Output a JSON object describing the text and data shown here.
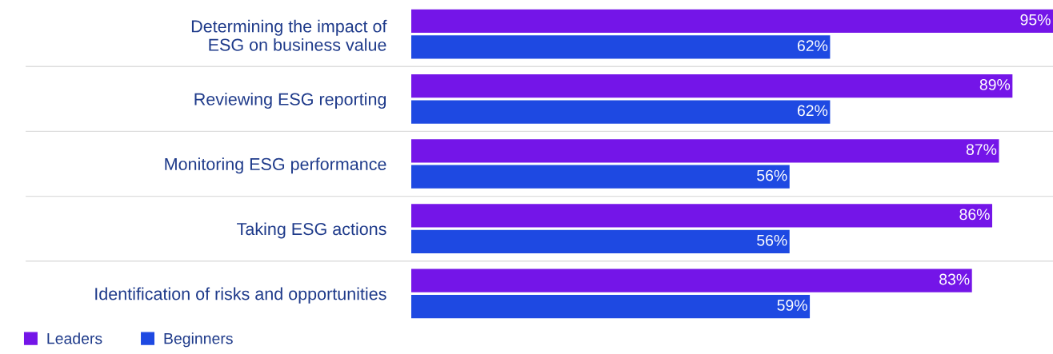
{
  "chart_data": {
    "type": "bar",
    "orientation": "horizontal",
    "categories": [
      "Determining the impact of\nESG on business value",
      "Reviewing ESG reporting",
      "Monitoring ESG performance",
      "Taking ESG actions",
      "Identification of risks and opportunities"
    ],
    "series": [
      {
        "name": "Leaders",
        "color": "#7415e8",
        "values": [
          95,
          89,
          87,
          86,
          83
        ],
        "value_labels": [
          "95%",
          "89%",
          "87%",
          "86%",
          "83%"
        ]
      },
      {
        "name": "Beginners",
        "color": "#1e49e2",
        "values": [
          62,
          62,
          56,
          56,
          59
        ],
        "value_labels": [
          "62%",
          "62%",
          "56%",
          "56%",
          "59%"
        ]
      }
    ],
    "legend": "bottom left",
    "tick_labels": "y",
    "grid": false
  }
}
